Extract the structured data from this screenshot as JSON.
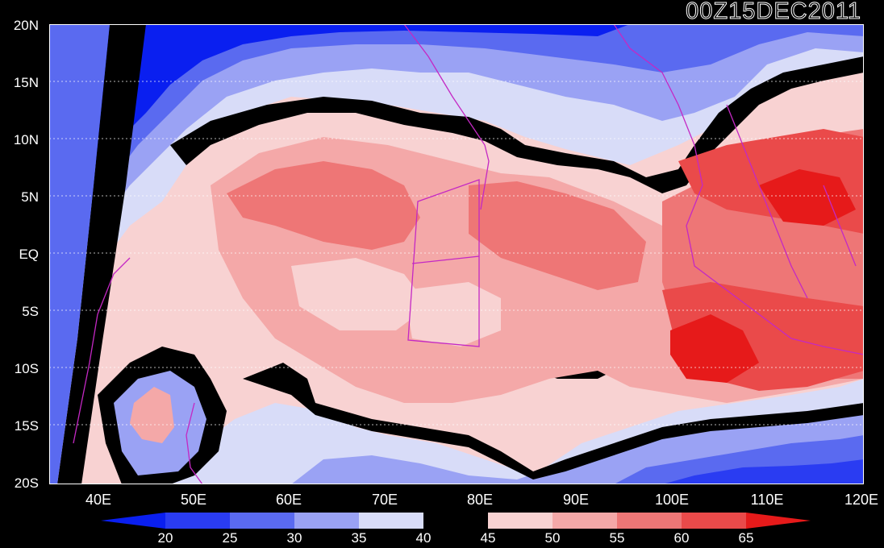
{
  "title": "00Z15DEC2011",
  "lat_labels": [
    "20N",
    "15N",
    "10N",
    "5N",
    "EQ",
    "5S",
    "10S",
    "15S",
    "20S"
  ],
  "lon_labels": [
    "40E",
    "50E",
    "60E",
    "70E",
    "80E",
    "90E",
    "100E",
    "110E",
    "120E"
  ],
  "colorbar": {
    "levels": [
      "20",
      "25",
      "30",
      "35",
      "40",
      "45",
      "50",
      "55",
      "60",
      "65"
    ],
    "colors": [
      "#0a1ff0",
      "#2a3cf2",
      "#5a6af0",
      "#9aa2f4",
      "#d8dcf8",
      "#000000",
      "#f8d2d2",
      "#f4a8a8",
      "#ee7676",
      "#ea4a4a",
      "#e61a1a"
    ]
  },
  "line_color": "#c428c4"
}
